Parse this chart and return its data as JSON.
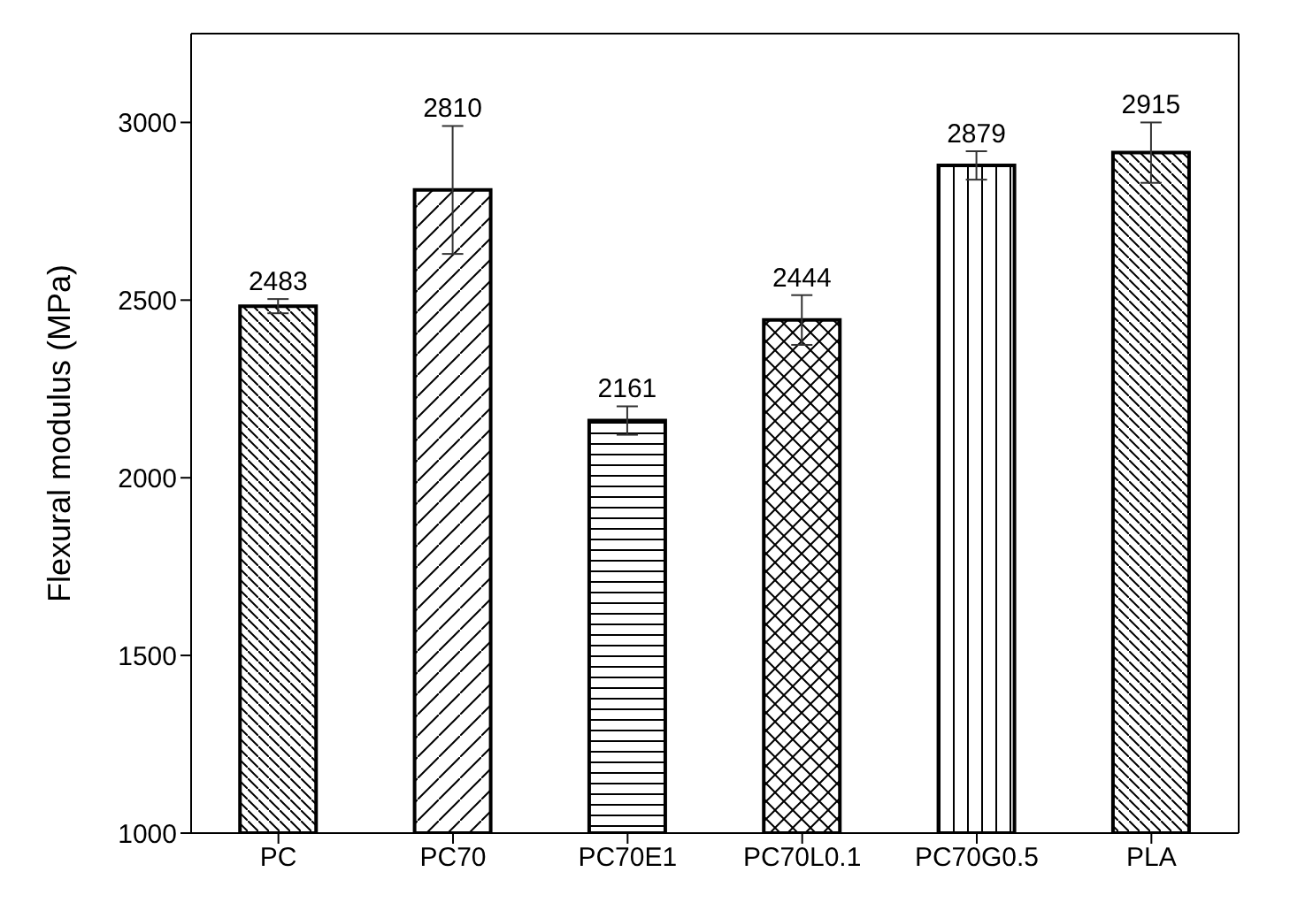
{
  "chart_data": {
    "type": "bar",
    "ylabel": "Flexural modulus (MPa)",
    "categories": [
      "PC",
      "PC70",
      "PC70E1",
      "PC70L0.1",
      "PC70G0.5",
      "PLA"
    ],
    "values": [
      2483,
      2810,
      2161,
      2444,
      2879,
      2915
    ],
    "errors": [
      20,
      180,
      40,
      70,
      40,
      85
    ],
    "colors": [
      "#000000",
      "#000000",
      "#000000",
      "#000000",
      "#000000",
      "#000000"
    ],
    "ylim": [
      1000,
      3250
    ],
    "yticks": [
      1000,
      1500,
      2000,
      2500,
      3000
    ],
    "data_labels": true,
    "grid": false
  }
}
